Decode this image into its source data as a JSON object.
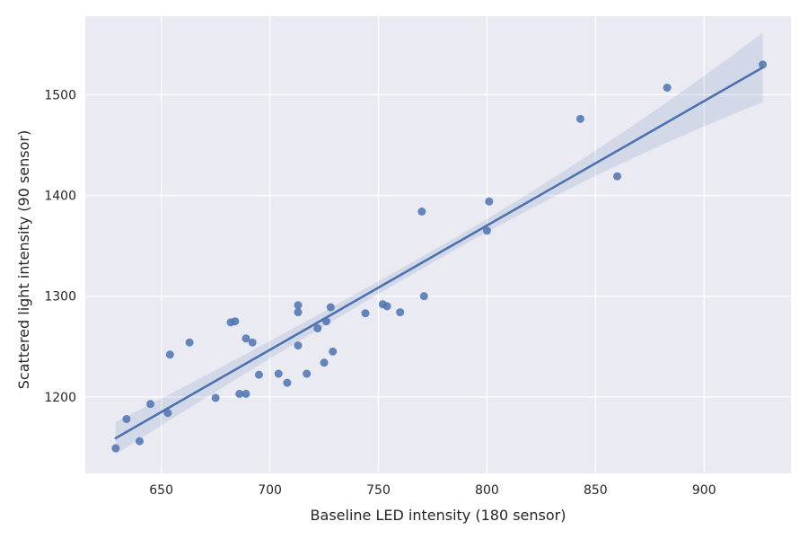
{
  "chart_data": {
    "type": "scatter",
    "title": "",
    "xlabel": "Baseline LED intensity (180 sensor)",
    "ylabel": "Scattered light intensity (90 sensor)",
    "xlim": [
      615,
      940
    ],
    "ylim": [
      1124,
      1578
    ],
    "xticks": [
      650,
      700,
      750,
      800,
      850,
      900
    ],
    "yticks": [
      1200,
      1300,
      1400,
      1500
    ],
    "grid": true,
    "colors": {
      "background": "#EAEAF2",
      "grid": "#FFFFFF",
      "points": "#4C72B0",
      "line": "#4C72B0",
      "band": "#4C72B0"
    },
    "points": [
      {
        "x": 629,
        "y": 1149
      },
      {
        "x": 634,
        "y": 1178
      },
      {
        "x": 640,
        "y": 1156
      },
      {
        "x": 645,
        "y": 1193
      },
      {
        "x": 653,
        "y": 1184
      },
      {
        "x": 654,
        "y": 1242
      },
      {
        "x": 663,
        "y": 1254
      },
      {
        "x": 675,
        "y": 1199
      },
      {
        "x": 682,
        "y": 1274
      },
      {
        "x": 684,
        "y": 1275
      },
      {
        "x": 686,
        "y": 1203
      },
      {
        "x": 689,
        "y": 1203
      },
      {
        "x": 689,
        "y": 1258
      },
      {
        "x": 692,
        "y": 1254
      },
      {
        "x": 695,
        "y": 1222
      },
      {
        "x": 704,
        "y": 1223
      },
      {
        "x": 708,
        "y": 1214
      },
      {
        "x": 713,
        "y": 1291
      },
      {
        "x": 713,
        "y": 1284
      },
      {
        "x": 713,
        "y": 1251
      },
      {
        "x": 717,
        "y": 1223
      },
      {
        "x": 722,
        "y": 1268
      },
      {
        "x": 725,
        "y": 1234
      },
      {
        "x": 726,
        "y": 1275
      },
      {
        "x": 728,
        "y": 1289
      },
      {
        "x": 729,
        "y": 1245
      },
      {
        "x": 744,
        "y": 1283
      },
      {
        "x": 752,
        "y": 1292
      },
      {
        "x": 754,
        "y": 1290
      },
      {
        "x": 760,
        "y": 1284
      },
      {
        "x": 770,
        "y": 1384
      },
      {
        "x": 771,
        "y": 1300
      },
      {
        "x": 800,
        "y": 1365
      },
      {
        "x": 801,
        "y": 1394
      },
      {
        "x": 843,
        "y": 1476
      },
      {
        "x": 860,
        "y": 1419
      },
      {
        "x": 883,
        "y": 1507
      },
      {
        "x": 927,
        "y": 1530
      }
    ],
    "regression": {
      "x_range": [
        629,
        927
      ],
      "y_start": 1159,
      "y_end": 1527,
      "ci_lower": [
        1144,
        1487
      ],
      "ci_upper": [
        1176,
        1556
      ]
    }
  }
}
